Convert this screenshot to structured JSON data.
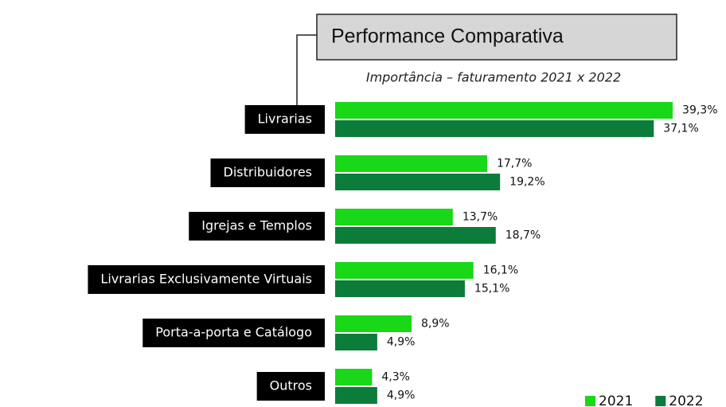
{
  "chart_data": {
    "type": "barh",
    "title": "Performance Comparativa",
    "subtitle": "Importância – faturamento 2021 x 2022",
    "categories": [
      "Livrarias",
      "Distribuidores",
      "Igrejas e Templos",
      "Livrarias Exclusivamente Virtuais",
      "Porta-a-porta e Catálogo",
      "Outros"
    ],
    "series": [
      {
        "name": "2021",
        "color": "#18d818",
        "values": [
          39.3,
          17.7,
          13.7,
          16.1,
          8.9,
          4.3
        ],
        "value_labels": [
          "39,3%",
          "17,7%",
          "13,7%",
          "16,1%",
          "8,9%",
          "4,3%"
        ]
      },
      {
        "name": "2022",
        "color": "#0b7c3a",
        "values": [
          37.1,
          19.2,
          18.7,
          15.1,
          4.9,
          4.9
        ],
        "value_labels": [
          "37,1%",
          "19,2%",
          "18,7%",
          "15,1%",
          "4,9%",
          "4,9%"
        ]
      }
    ]
  }
}
